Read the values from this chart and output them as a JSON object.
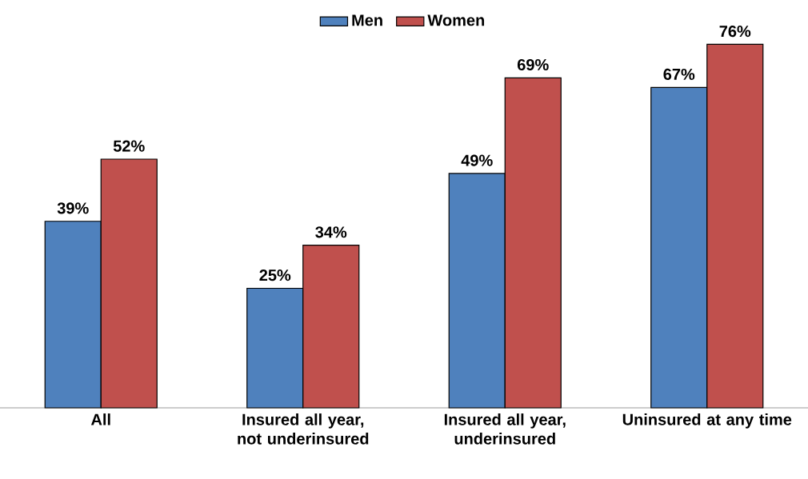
{
  "chart_data": {
    "type": "bar",
    "categories": [
      "All",
      "Insured all year, not underinsured",
      "Insured all year, underinsured",
      "Uninsured at any time"
    ],
    "series": [
      {
        "name": "Men",
        "color": "#4f81bd",
        "values": [
          39,
          25,
          49,
          67
        ],
        "value_labels": [
          "39%",
          "25%",
          "49%",
          "67%"
        ]
      },
      {
        "name": "Women",
        "color": "#c0504d",
        "values": [
          52,
          34,
          69,
          76
        ],
        "value_labels": [
          "52%",
          "34%",
          "69%",
          "76%"
        ]
      }
    ],
    "legend": "top"
  }
}
